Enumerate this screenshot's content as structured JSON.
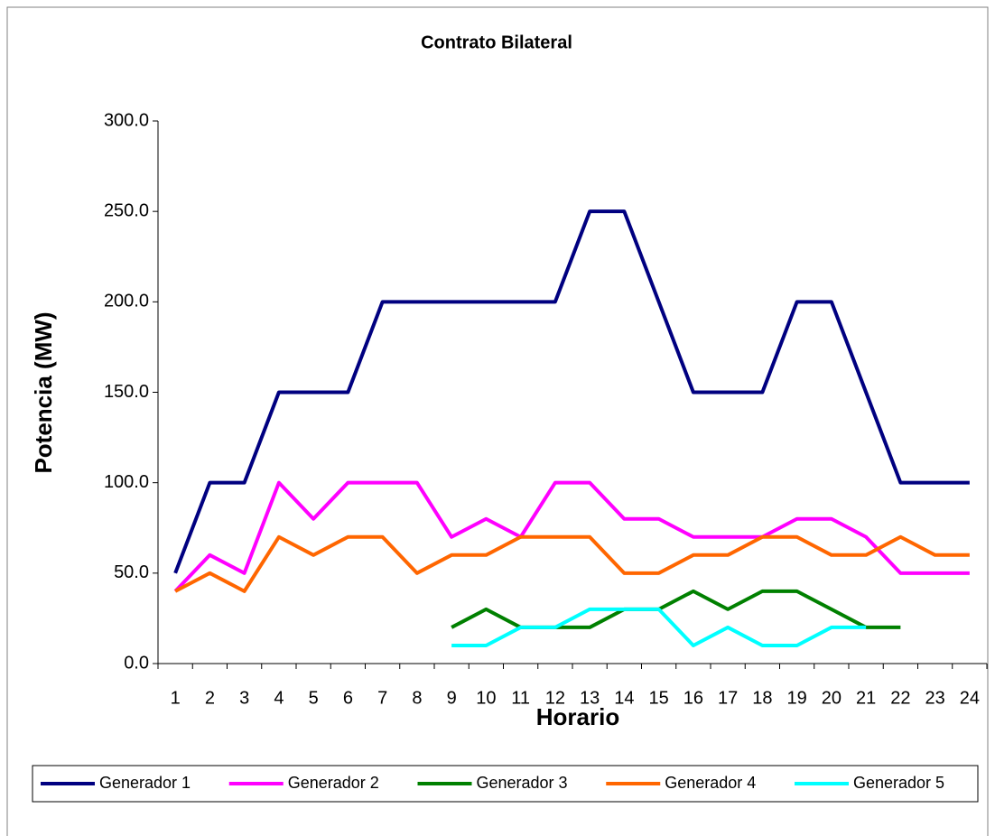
{
  "chart_data": {
    "type": "line",
    "title": "Contrato Bilateral",
    "x_label": "Horario",
    "y_label": "Potencia (MW)",
    "categories": [
      "1",
      "2",
      "3",
      "4",
      "5",
      "6",
      "7",
      "8",
      "9",
      "10",
      "11",
      "12",
      "13",
      "14",
      "15",
      "16",
      "17",
      "18",
      "19",
      "20",
      "21",
      "22",
      "23",
      "24"
    ],
    "ylim": [
      0,
      300
    ],
    "yticks": [
      {
        "value": 0,
        "label": "0.0"
      },
      {
        "value": 50,
        "label": "50.0"
      },
      {
        "value": 100,
        "label": "100.0"
      },
      {
        "value": 150,
        "label": "150.0"
      },
      {
        "value": 200,
        "label": "200.0"
      },
      {
        "value": 250,
        "label": "250.0"
      },
      {
        "value": 300,
        "label": "300.0"
      }
    ],
    "grid": false,
    "legend": "bottom",
    "series": [
      {
        "name": "Generador 1",
        "color": "#000080",
        "values": [
          50,
          100,
          100,
          150,
          150,
          150,
          200,
          200,
          200,
          200,
          200,
          200,
          250,
          250,
          200,
          150,
          150,
          150,
          200,
          200,
          150,
          100,
          100,
          100
        ]
      },
      {
        "name": "Generador 2",
        "color": "#ff00ff",
        "values": [
          40,
          60,
          50,
          100,
          80,
          100,
          100,
          100,
          70,
          80,
          70,
          100,
          100,
          80,
          80,
          70,
          70,
          70,
          80,
          80,
          70,
          50,
          50,
          50
        ]
      },
      {
        "name": "Generador 3",
        "color": "#008000",
        "values": [
          null,
          null,
          null,
          null,
          null,
          null,
          null,
          null,
          20,
          30,
          20,
          20,
          20,
          30,
          30,
          40,
          30,
          40,
          40,
          30,
          20,
          20,
          null,
          null
        ]
      },
      {
        "name": "Generador 4",
        "color": "#ff6600",
        "values": [
          40,
          50,
          40,
          70,
          60,
          70,
          70,
          50,
          60,
          60,
          70,
          70,
          70,
          50,
          50,
          60,
          60,
          70,
          70,
          60,
          60,
          70,
          60,
          60
        ]
      },
      {
        "name": "Generador 5",
        "color": "#00ffff",
        "values": [
          null,
          null,
          null,
          null,
          null,
          null,
          null,
          null,
          10,
          10,
          20,
          20,
          30,
          30,
          30,
          10,
          20,
          10,
          10,
          20,
          20,
          null,
          null,
          null
        ]
      }
    ]
  }
}
